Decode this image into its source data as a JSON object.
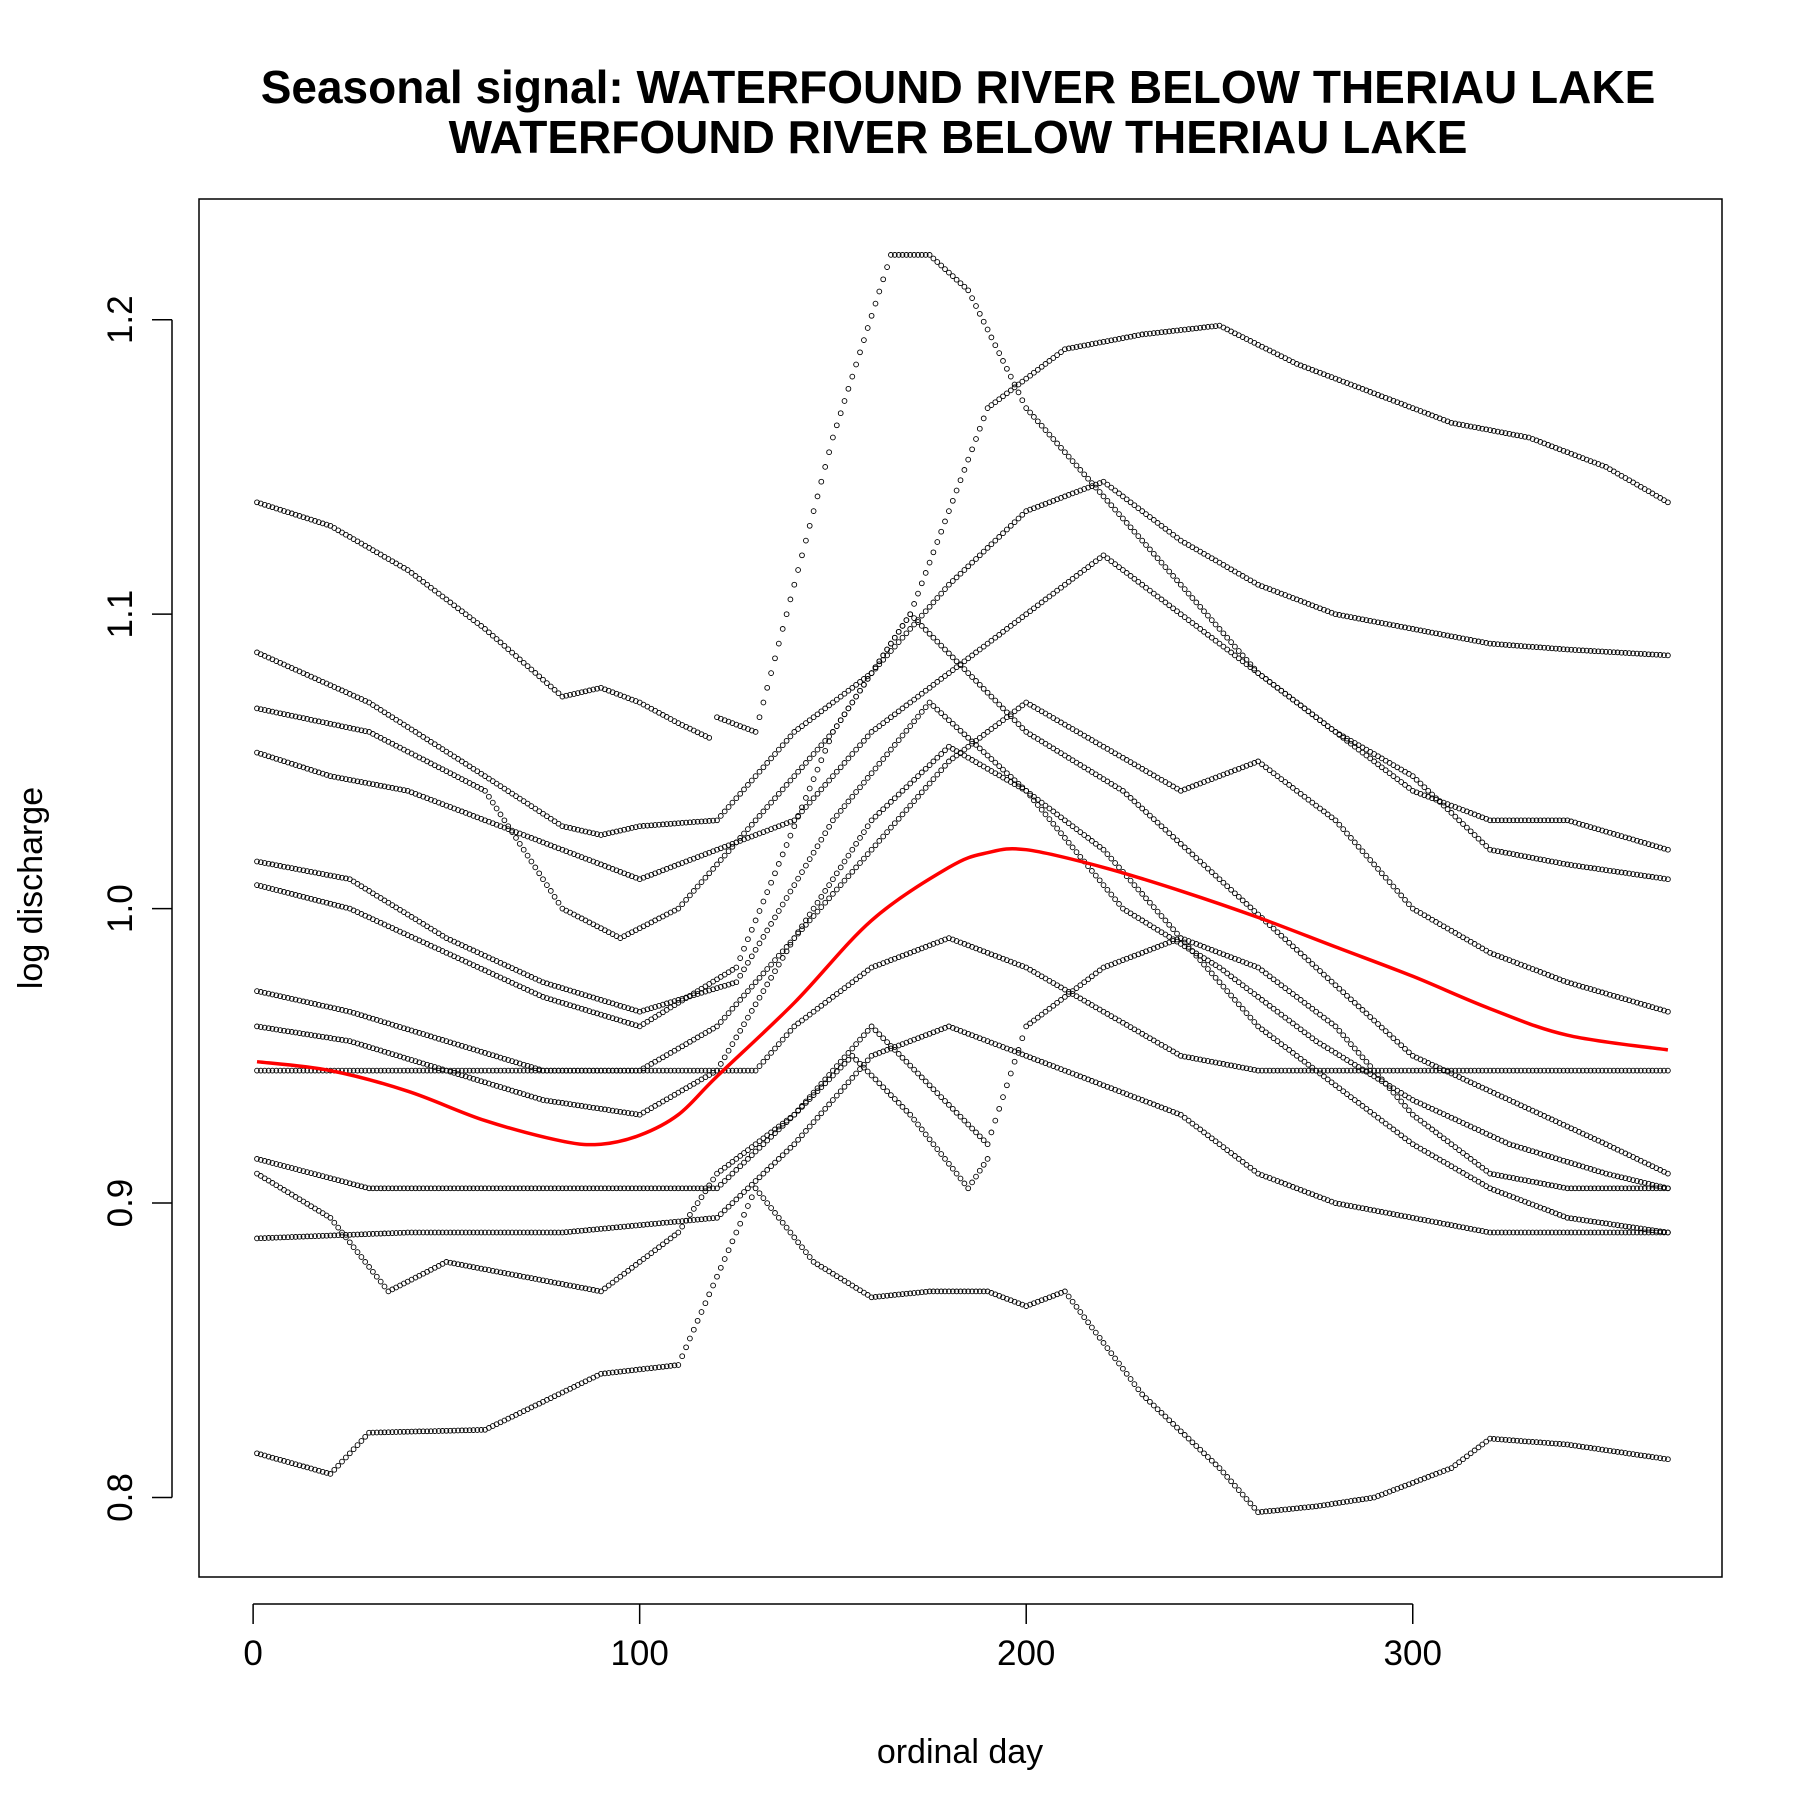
{
  "chart_data": {
    "type": "scatter",
    "title": "Seasonal signal: WATERFOUND RIVER BELOW THERIAU LAKE",
    "subtitle": "WATERFOUND RIVER BELOW THERIAU LAKE",
    "xlabel": "ordinal day",
    "ylabel": "log discharge",
    "xlim": [
      -14,
      380
    ],
    "ylim": [
      0.773,
      1.241
    ],
    "xticks": [
      0,
      100,
      200,
      300
    ],
    "yticks": [
      0.8,
      0.9,
      1.0,
      1.1,
      1.2
    ],
    "xtick_labels": [
      "0",
      "100",
      "200",
      "300"
    ],
    "ytick_labels": [
      "0.8",
      "0.9",
      "1.0",
      "1.1",
      "1.2"
    ],
    "grid": false,
    "legend": "none",
    "point_color": "#000000",
    "series": [
      {
        "style": "points",
        "color": "#000000",
        "x": [
          1,
          20,
          40,
          60,
          80,
          90,
          100,
          110,
          118
        ],
        "y": [
          1.138,
          1.13,
          1.115,
          1.095,
          1.072,
          1.075,
          1.07,
          1.063,
          1.058
        ]
      },
      {
        "style": "points",
        "color": "#000000",
        "x": [
          120,
          130,
          150,
          165,
          175,
          185,
          200,
          220,
          240,
          260,
          280,
          300,
          320,
          340,
          366
        ],
        "y": [
          1.065,
          1.06,
          1.16,
          1.222,
          1.222,
          1.21,
          1.17,
          1.14,
          1.11,
          1.08,
          1.06,
          1.045,
          1.02,
          1.015,
          1.01
        ]
      },
      {
        "style": "points",
        "color": "#000000",
        "x": [
          1,
          30,
          60,
          80,
          90,
          100,
          120,
          140,
          160,
          180,
          200,
          220,
          240,
          260,
          280,
          300,
          320,
          340,
          366
        ],
        "y": [
          1.087,
          1.07,
          1.045,
          1.028,
          1.025,
          1.028,
          1.03,
          1.06,
          1.08,
          1.11,
          1.135,
          1.145,
          1.125,
          1.11,
          1.1,
          1.095,
          1.09,
          1.088,
          1.086
        ]
      },
      {
        "style": "points",
        "color": "#000000",
        "x": [
          1,
          30,
          60,
          80,
          95,
          110,
          130,
          150,
          170,
          190,
          210,
          230,
          250,
          270,
          290,
          310,
          330,
          350,
          366
        ],
        "y": [
          1.068,
          1.06,
          1.04,
          1.0,
          0.99,
          1.0,
          1.03,
          1.06,
          1.1,
          1.17,
          1.19,
          1.195,
          1.198,
          1.185,
          1.175,
          1.165,
          1.16,
          1.15,
          1.138
        ]
      },
      {
        "style": "points",
        "color": "#000000",
        "x": [
          1,
          20,
          40,
          60,
          80,
          100,
          120,
          140,
          160,
          180,
          200,
          220,
          240,
          260,
          280,
          300,
          320,
          340,
          366
        ],
        "y": [
          1.053,
          1.045,
          1.04,
          1.03,
          1.02,
          1.01,
          1.02,
          1.03,
          1.06,
          1.08,
          1.1,
          1.12,
          1.1,
          1.08,
          1.06,
          1.04,
          1.03,
          1.03,
          1.02
        ]
      },
      {
        "style": "points",
        "color": "#000000",
        "x": [
          1,
          25,
          50,
          75,
          100,
          125,
          150,
          175,
          200,
          225,
          250,
          275,
          300,
          325,
          350,
          366
        ],
        "y": [
          1.016,
          1.01,
          0.99,
          0.975,
          0.965,
          0.975,
          1.03,
          1.07,
          1.04,
          1.0,
          0.98,
          0.955,
          0.935,
          0.92,
          0.91,
          0.905
        ]
      },
      {
        "style": "points",
        "color": "#000000",
        "x": [
          1,
          25,
          50,
          75,
          100,
          125,
          150,
          170,
          185,
          200,
          225,
          250,
          275,
          300,
          325,
          350,
          366
        ],
        "y": [
          1.008,
          1.0,
          0.985,
          0.97,
          0.96,
          0.98,
          1.06,
          1.1,
          1.08,
          1.06,
          1.04,
          1.01,
          0.98,
          0.95,
          0.935,
          0.92,
          0.91
        ]
      },
      {
        "style": "points",
        "color": "#000000",
        "x": [
          1,
          25,
          50,
          75,
          100,
          120,
          140,
          160,
          180,
          200,
          220,
          240,
          260,
          280,
          300,
          320,
          340,
          366
        ],
        "y": [
          0.972,
          0.965,
          0.955,
          0.945,
          0.945,
          0.96,
          0.99,
          1.02,
          1.05,
          1.07,
          1.055,
          1.04,
          1.05,
          1.03,
          1.0,
          0.985,
          0.975,
          0.965
        ]
      },
      {
        "style": "points",
        "color": "#000000",
        "x": [
          1,
          25,
          50,
          75,
          100,
          120,
          140,
          160,
          180,
          200,
          220,
          240,
          260,
          280,
          300,
          320,
          340,
          366
        ],
        "y": [
          0.96,
          0.955,
          0.945,
          0.935,
          0.93,
          0.945,
          0.99,
          1.03,
          1.055,
          1.04,
          1.02,
          0.99,
          0.96,
          0.94,
          0.92,
          0.905,
          0.895,
          0.89
        ]
      },
      {
        "style": "points",
        "color": "#000000",
        "x": [
          1,
          40,
          80,
          100,
          130,
          140,
          160,
          180,
          200,
          220,
          240,
          260,
          280,
          300,
          320,
          340,
          366
        ],
        "y": [
          0.945,
          0.945,
          0.945,
          0.945,
          0.945,
          0.96,
          0.98,
          0.99,
          0.98,
          0.965,
          0.95,
          0.945,
          0.945,
          0.945,
          0.945,
          0.945,
          0.945
        ]
      },
      {
        "style": "points",
        "color": "#000000",
        "x": [
          1,
          30,
          60,
          90,
          120,
          140,
          160,
          175,
          190,
          200,
          220,
          240,
          260,
          280,
          300,
          320,
          340,
          366
        ],
        "y": [
          0.915,
          0.905,
          0.905,
          0.905,
          0.905,
          0.93,
          0.96,
          0.94,
          0.92,
          0.96,
          0.98,
          0.99,
          0.98,
          0.96,
          0.93,
          0.91,
          0.905,
          0.905
        ]
      },
      {
        "style": "points",
        "color": "#000000",
        "x": [
          1,
          20,
          35,
          50,
          70,
          90,
          110,
          120,
          140,
          155,
          170,
          185,
          190
        ],
        "y": [
          0.91,
          0.895,
          0.87,
          0.88,
          0.875,
          0.87,
          0.89,
          0.91,
          0.93,
          0.95,
          0.93,
          0.905,
          0.915
        ]
      },
      {
        "style": "points",
        "color": "#000000",
        "x": [
          1,
          40,
          80,
          120,
          140,
          160,
          180,
          200,
          220,
          240,
          260,
          280,
          300,
          320,
          340,
          366
        ],
        "y": [
          0.888,
          0.89,
          0.89,
          0.895,
          0.92,
          0.95,
          0.96,
          0.95,
          0.94,
          0.93,
          0.91,
          0.9,
          0.895,
          0.89,
          0.89,
          0.89
        ]
      },
      {
        "style": "points",
        "color": "#000000",
        "x": [
          1,
          20,
          30,
          60,
          90,
          110,
          130,
          145,
          160,
          175,
          190,
          200,
          210,
          230,
          250,
          260,
          275,
          290,
          310,
          320,
          340,
          366
        ],
        "y": [
          0.815,
          0.808,
          0.822,
          0.823,
          0.842,
          0.845,
          0.905,
          0.88,
          0.868,
          0.87,
          0.87,
          0.865,
          0.87,
          0.835,
          0.81,
          0.795,
          0.797,
          0.8,
          0.81,
          0.82,
          0.818,
          0.813
        ]
      },
      {
        "style": "line",
        "color": "#ff0000",
        "x": [
          1,
          20,
          40,
          60,
          80,
          90,
          100,
          110,
          120,
          140,
          160,
          180,
          190,
          200,
          220,
          240,
          260,
          280,
          300,
          320,
          340,
          366
        ],
        "y": [
          0.948,
          0.945,
          0.938,
          0.928,
          0.921,
          0.92,
          0.923,
          0.93,
          0.943,
          0.968,
          0.996,
          1.014,
          1.019,
          1.02,
          1.014,
          1.006,
          0.997,
          0.987,
          0.977,
          0.966,
          0.957,
          0.952
        ]
      }
    ]
  }
}
